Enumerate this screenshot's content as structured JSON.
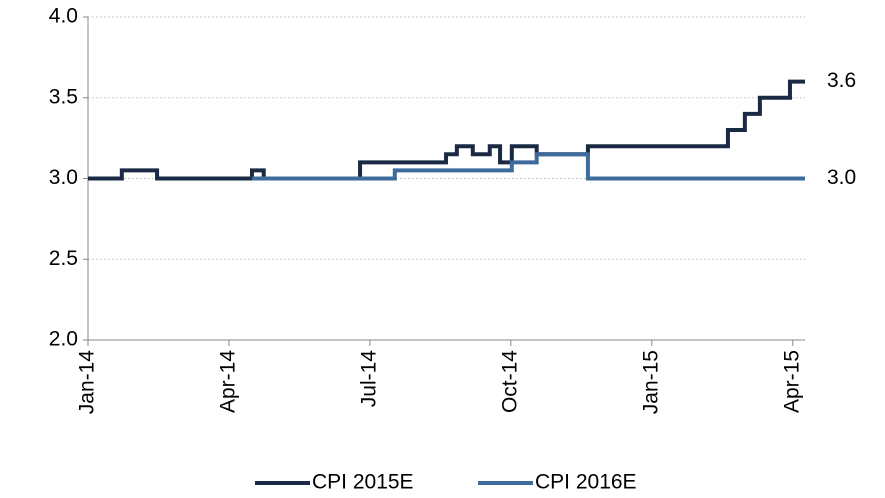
{
  "chart_data": {
    "type": "line",
    "step": "after",
    "xlim": [
      0,
      15.26
    ],
    "xticks": [
      {
        "value": 0,
        "label": "Jan-14"
      },
      {
        "value": 3,
        "label": "Apr-14"
      },
      {
        "value": 6,
        "label": "Jul-14"
      },
      {
        "value": 9,
        "label": "Oct-14"
      },
      {
        "value": 12,
        "label": "Jan-15"
      },
      {
        "value": 15,
        "label": "Apr-15"
      }
    ],
    "ylim": [
      2,
      4
    ],
    "yticks": [
      {
        "value": 2,
        "label": "2.0"
      },
      {
        "value": 2.5,
        "label": "2.5"
      },
      {
        "value": 3,
        "label": "3.0"
      },
      {
        "value": 3.5,
        "label": "3.5"
      },
      {
        "value": 4,
        "label": "4.0"
      }
    ],
    "grid": true,
    "legend": "bottom",
    "series": [
      {
        "name": "CPI 2015E",
        "color": "#1b2a44",
        "x": [
          0,
          0.72,
          1.47,
          3.49,
          3.74,
          5.79,
          7.62,
          7.85,
          8.19,
          8.55,
          8.77,
          9.02,
          9.55,
          10.64,
          13.62,
          13.98,
          14.3,
          14.94,
          15.26
        ],
        "values": [
          3.0,
          3.05,
          3.0,
          3.05,
          3.0,
          3.1,
          3.15,
          3.2,
          3.15,
          3.2,
          3.1,
          3.2,
          3.15,
          3.2,
          3.3,
          3.4,
          3.5,
          3.6,
          3.6
        ],
        "value_labels": [
          null,
          null,
          null,
          null,
          null,
          null,
          null,
          null,
          null,
          null,
          null,
          null,
          null,
          null,
          null,
          null,
          null,
          null,
          "3.6"
        ]
      },
      {
        "name": "CPI 2016E",
        "color": "#3e6b9b",
        "x": [
          3.49,
          6.53,
          9.02,
          9.55,
          10.64,
          15.26
        ],
        "values": [
          3.0,
          3.05,
          3.1,
          3.15,
          3.0,
          3.0
        ],
        "value_labels": [
          null,
          null,
          null,
          null,
          null,
          "3.0"
        ]
      }
    ]
  }
}
